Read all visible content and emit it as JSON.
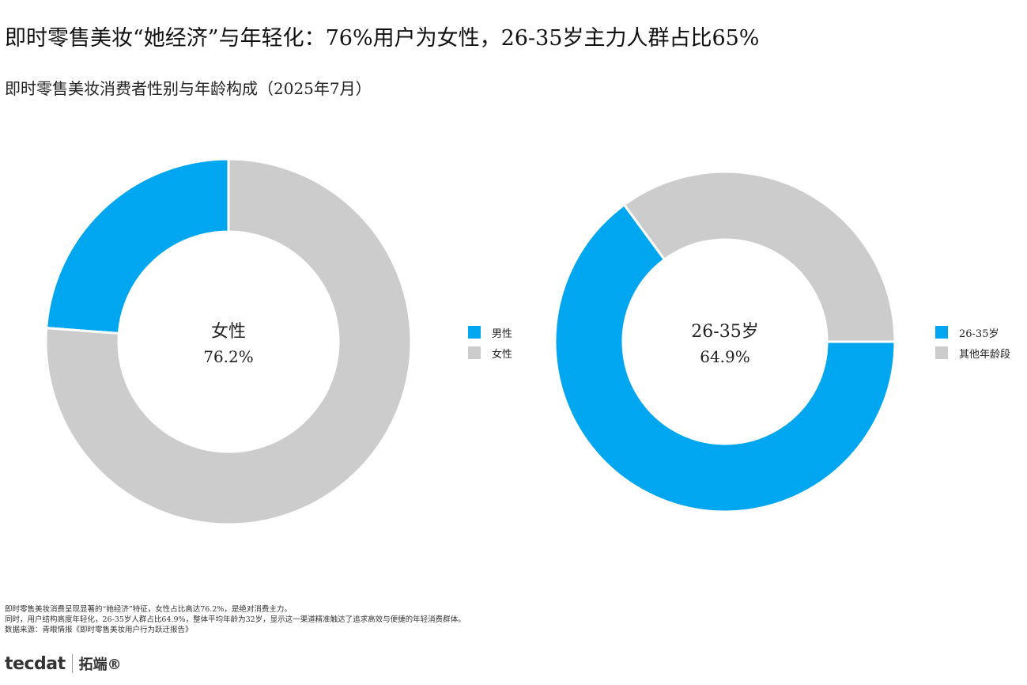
{
  "title": "即时零售美妆“她经济”与年轻化：76%用户为女性，26-35岁主力人群占比65%",
  "subtitle": "即时零售美妆消费者性别与年龄构成（2025年7月）",
  "colors": {
    "primary": "#00a6ef",
    "secondary": "#cccccc"
  },
  "chart_data": [
    {
      "type": "pie",
      "categories": [
        "男性",
        "女性"
      ],
      "values": [
        23.8,
        76.2
      ],
      "colors": [
        "#00a6ef",
        "#cccccc"
      ],
      "center_label": "女性",
      "center_value": "76.2%",
      "legend": [
        "男性",
        "女性"
      ],
      "legend_position": "right"
    },
    {
      "type": "pie",
      "categories": [
        "26-35岁",
        "其他年龄段"
      ],
      "values": [
        64.9,
        35.1
      ],
      "colors": [
        "#00a6ef",
        "#cccccc"
      ],
      "center_label": "26-35岁",
      "center_value": "64.9%",
      "legend": [
        "26-35岁",
        "其他年龄段"
      ],
      "legend_position": "right"
    }
  ],
  "footnotes": [
    "即时零售美妆消费呈现显著的“她经济”特征，女性占比高达76.2%，是绝对消费主力。",
    "同时，用户结构高度年轻化，26-35岁人群占比64.9%，整体平均年龄为32岁，显示这一渠道精准触达了追求高效与便捷的年轻消费群体。",
    "数据来源：青眼情报《即时零售美妆用户行为跃迁报告》"
  ],
  "logo": {
    "mark": "tecdat",
    "cn": "拓端®"
  }
}
